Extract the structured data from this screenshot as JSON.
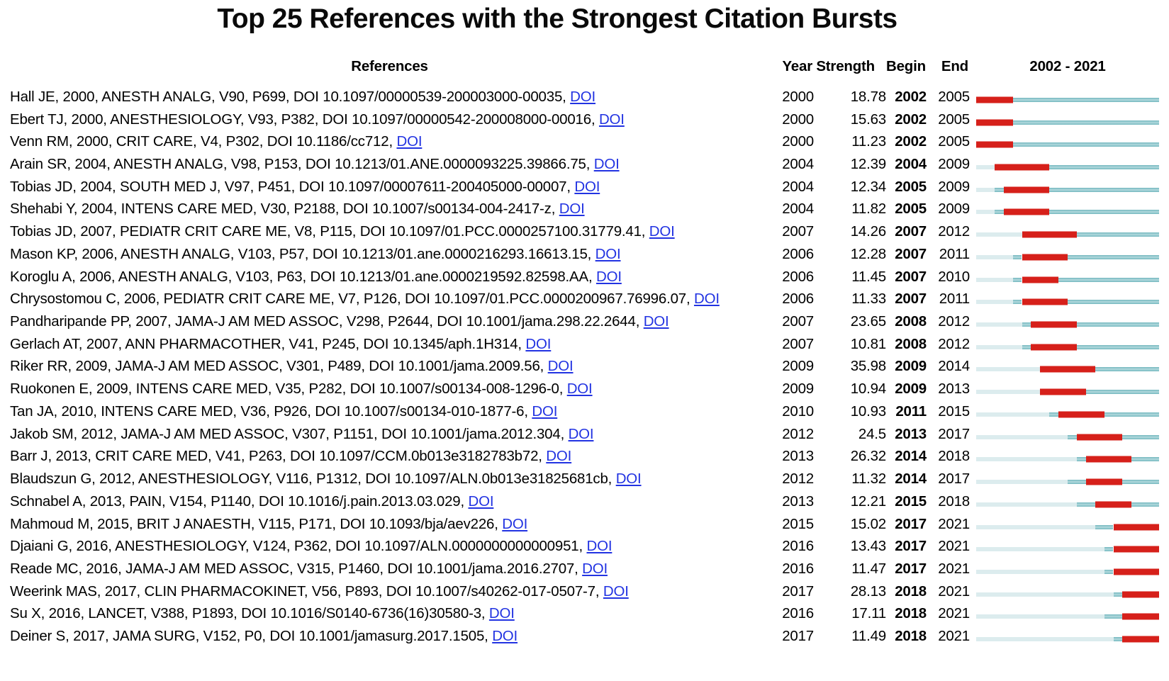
{
  "title": "Top 25 References with the Strongest Citation Bursts",
  "header": {
    "references": "References",
    "year": "Year",
    "strength": "Strength",
    "begin": "Begin",
    "end": "End",
    "timeline": "2002 - 2021"
  },
  "link_label": "DOI",
  "colors": {
    "burst_bar": "#d6201a",
    "timeline_bar": "#72b7be",
    "pre_publication_bar": "#dcecee",
    "doi_link": "#2233e2",
    "text": "#000000"
  },
  "chart_data": {
    "type": "table",
    "title": "Top 25 References with the Strongest Citation Bursts",
    "timeline_start": 2002,
    "timeline_end": 2021,
    "columns": [
      "References",
      "Year",
      "Strength",
      "Begin",
      "End",
      "2002 - 2021"
    ],
    "rows": [
      {
        "reference": "Hall JE, 2000, ANESTH ANALG, V90, P699, DOI 10.1097/00000539-200003000-00035,",
        "year": 2000,
        "strength": "18.78",
        "begin": 2002,
        "end": 2005
      },
      {
        "reference": "Ebert TJ, 2000, ANESTHESIOLOGY, V93, P382, DOI 10.1097/00000542-200008000-00016,",
        "year": 2000,
        "strength": "15.63",
        "begin": 2002,
        "end": 2005
      },
      {
        "reference": "Venn RM, 2000, CRIT CARE, V4, P302, DOI 10.1186/cc712,",
        "year": 2000,
        "strength": "11.23",
        "begin": 2002,
        "end": 2005
      },
      {
        "reference": "Arain SR, 2004, ANESTH ANALG, V98, P153, DOI 10.1213/01.ANE.0000093225.39866.75,",
        "year": 2004,
        "strength": "12.39",
        "begin": 2004,
        "end": 2009
      },
      {
        "reference": "Tobias JD, 2004, SOUTH MED J, V97, P451, DOI 10.1097/00007611-200405000-00007,",
        "year": 2004,
        "strength": "12.34",
        "begin": 2005,
        "end": 2009
      },
      {
        "reference": "Shehabi Y, 2004, INTENS CARE MED, V30, P2188, DOI 10.1007/s00134-004-2417-z,",
        "year": 2004,
        "strength": "11.82",
        "begin": 2005,
        "end": 2009
      },
      {
        "reference": "Tobias JD, 2007, PEDIATR CRIT CARE ME, V8, P115, DOI 10.1097/01.PCC.0000257100.31779.41,",
        "year": 2007,
        "strength": "14.26",
        "begin": 2007,
        "end": 2012
      },
      {
        "reference": "Mason KP, 2006, ANESTH ANALG, V103, P57, DOI 10.1213/01.ane.0000216293.16613.15,",
        "year": 2006,
        "strength": "12.28",
        "begin": 2007,
        "end": 2011
      },
      {
        "reference": "Koroglu A, 2006, ANESTH ANALG, V103, P63, DOI 10.1213/01.ane.0000219592.82598.AA,",
        "year": 2006,
        "strength": "11.45",
        "begin": 2007,
        "end": 2010
      },
      {
        "reference": "Chrysostomou C, 2006, PEDIATR CRIT CARE ME, V7, P126, DOI 10.1097/01.PCC.0000200967.76996.07,",
        "year": 2006,
        "strength": "11.33",
        "begin": 2007,
        "end": 2011
      },
      {
        "reference": "Pandharipande PP, 2007, JAMA-J AM MED ASSOC, V298, P2644, DOI 10.1001/jama.298.22.2644,",
        "year": 2007,
        "strength": "23.65",
        "begin": 2008,
        "end": 2012
      },
      {
        "reference": "Gerlach AT, 2007, ANN PHARMACOTHER, V41, P245, DOI 10.1345/aph.1H314,",
        "year": 2007,
        "strength": "10.81",
        "begin": 2008,
        "end": 2012
      },
      {
        "reference": "Riker RR, 2009, JAMA-J AM MED ASSOC, V301, P489, DOI 10.1001/jama.2009.56,",
        "year": 2009,
        "strength": "35.98",
        "begin": 2009,
        "end": 2014
      },
      {
        "reference": "Ruokonen E, 2009, INTENS CARE MED, V35, P282, DOI 10.1007/s00134-008-1296-0,",
        "year": 2009,
        "strength": "10.94",
        "begin": 2009,
        "end": 2013
      },
      {
        "reference": "Tan JA, 2010, INTENS CARE MED, V36, P926, DOI 10.1007/s00134-010-1877-6,",
        "year": 2010,
        "strength": "10.93",
        "begin": 2011,
        "end": 2015
      },
      {
        "reference": "Jakob SM, 2012, JAMA-J AM MED ASSOC, V307, P1151, DOI 10.1001/jama.2012.304,",
        "year": 2012,
        "strength": "24.5",
        "begin": 2013,
        "end": 2017
      },
      {
        "reference": "Barr J, 2013, CRIT CARE MED, V41, P263, DOI 10.1097/CCM.0b013e3182783b72,",
        "year": 2013,
        "strength": "26.32",
        "begin": 2014,
        "end": 2018
      },
      {
        "reference": "Blaudszun G, 2012, ANESTHESIOLOGY, V116, P1312, DOI 10.1097/ALN.0b013e31825681cb,",
        "year": 2012,
        "strength": "11.32",
        "begin": 2014,
        "end": 2017
      },
      {
        "reference": "Schnabel A, 2013, PAIN, V154, P1140, DOI 10.1016/j.pain.2013.03.029,",
        "year": 2013,
        "strength": "12.21",
        "begin": 2015,
        "end": 2018
      },
      {
        "reference": "Mahmoud M, 2015, BRIT J ANAESTH, V115, P171, DOI 10.1093/bja/aev226,",
        "year": 2015,
        "strength": "15.02",
        "begin": 2017,
        "end": 2021
      },
      {
        "reference": "Djaiani G, 2016, ANESTHESIOLOGY, V124, P362, DOI 10.1097/ALN.0000000000000951,",
        "year": 2016,
        "strength": "13.43",
        "begin": 2017,
        "end": 2021
      },
      {
        "reference": "Reade MC, 2016, JAMA-J AM MED ASSOC, V315, P1460, DOI 10.1001/jama.2016.2707,",
        "year": 2016,
        "strength": "11.47",
        "begin": 2017,
        "end": 2021
      },
      {
        "reference": "Weerink MAS, 2017, CLIN PHARMACOKINET, V56, P893, DOI 10.1007/s40262-017-0507-7,",
        "year": 2017,
        "strength": "28.13",
        "begin": 2018,
        "end": 2021
      },
      {
        "reference": "Su X, 2016, LANCET, V388, P1893, DOI 10.1016/S0140-6736(16)30580-3,",
        "year": 2016,
        "strength": "17.11",
        "begin": 2018,
        "end": 2021
      },
      {
        "reference": "Deiner S, 2017, JAMA SURG, V152, P0, DOI 10.1001/jamasurg.2017.1505,",
        "year": 2017,
        "strength": "11.49",
        "begin": 2018,
        "end": 2021
      }
    ]
  }
}
